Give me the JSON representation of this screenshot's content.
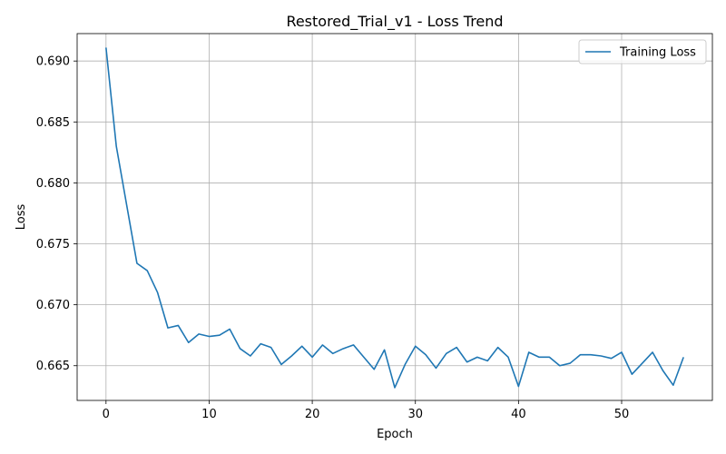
{
  "chart_data": {
    "type": "line",
    "title": "Restored_Trial_v1 - Loss Trend",
    "xlabel": "Epoch",
    "ylabel": "Loss",
    "xlim": [
      -2.8,
      58.8
    ],
    "ylim": [
      0.66215,
      0.69225
    ],
    "xticks": [
      0,
      10,
      20,
      30,
      40,
      50
    ],
    "yticks": [
      0.665,
      0.67,
      0.675,
      0.68,
      0.685,
      0.69
    ],
    "ytick_labels": [
      "0.665",
      "0.670",
      "0.675",
      "0.680",
      "0.685",
      "0.690"
    ],
    "grid": true,
    "legend": "top-right",
    "series": [
      {
        "name": "Training Loss",
        "color": "#1f77b4",
        "x": [
          0,
          1,
          2,
          3,
          4,
          5,
          6,
          7,
          8,
          9,
          10,
          11,
          12,
          13,
          14,
          15,
          16,
          17,
          18,
          19,
          20,
          21,
          22,
          23,
          24,
          25,
          26,
          27,
          28,
          29,
          30,
          31,
          32,
          33,
          34,
          35,
          36,
          37,
          38,
          39,
          40,
          41,
          42,
          43,
          44,
          45,
          46,
          47,
          48,
          49,
          50,
          51,
          52,
          53,
          54,
          55,
          56
        ],
        "values": [
          0.6911,
          0.683,
          0.6782,
          0.6734,
          0.6728,
          0.671,
          0.6681,
          0.6683,
          0.6669,
          0.6676,
          0.6674,
          0.6675,
          0.668,
          0.6664,
          0.6658,
          0.6668,
          0.6665,
          0.6651,
          0.6658,
          0.6666,
          0.6657,
          0.6667,
          0.666,
          0.6664,
          0.6667,
          0.6657,
          0.6647,
          0.6663,
          0.6632,
          0.6651,
          0.6666,
          0.6659,
          0.6648,
          0.666,
          0.6665,
          0.6653,
          0.6657,
          0.6654,
          0.6665,
          0.6657,
          0.6633,
          0.6661,
          0.6657,
          0.6657,
          0.665,
          0.6652,
          0.6659,
          0.6659,
          0.6658,
          0.6656,
          0.6661,
          0.6643,
          0.6652,
          0.6661,
          0.6646,
          0.6634,
          0.6657
        ]
      }
    ]
  }
}
